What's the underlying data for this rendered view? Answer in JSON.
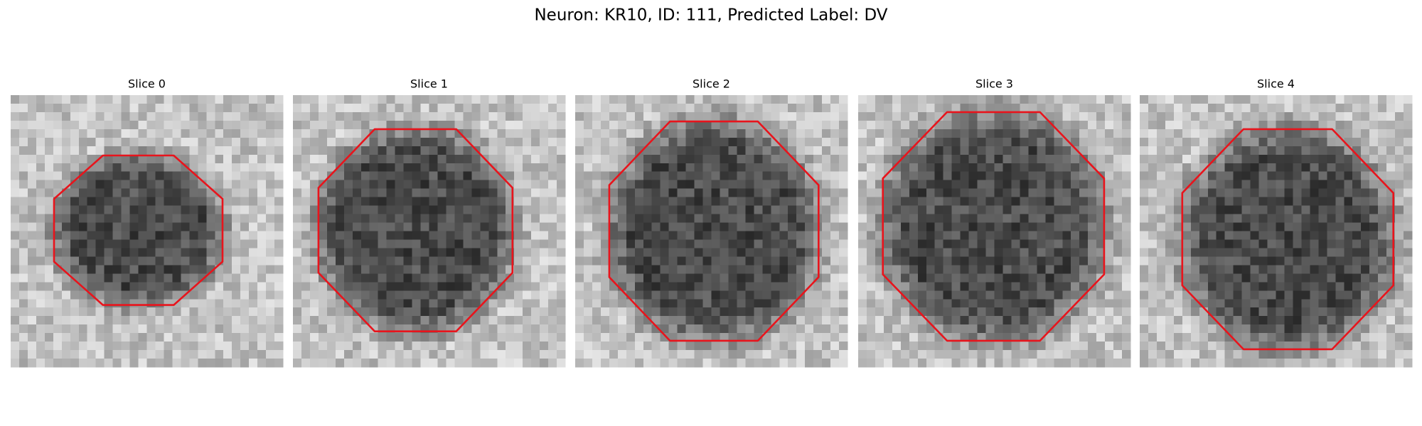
{
  "figure": {
    "title": "Neuron: KR10, ID: 111, Predicted Label: DV",
    "panels": [
      {
        "title": "Slice 0"
      },
      {
        "title": "Slice 1"
      },
      {
        "title": "Slice 2"
      },
      {
        "title": "Slice 3"
      },
      {
        "title": "Slice 4"
      }
    ]
  }
}
